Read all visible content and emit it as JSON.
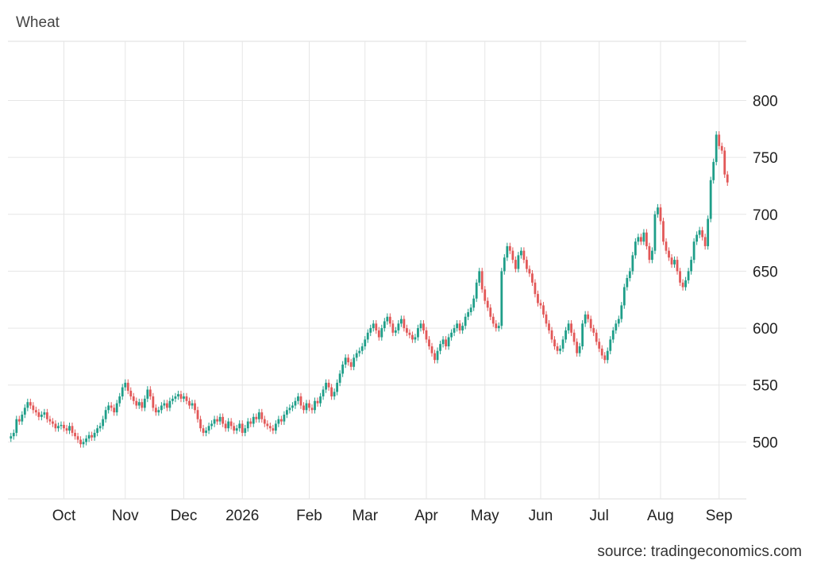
{
  "chart_data": {
    "type": "candlestick",
    "title": "Wheat",
    "source": "source: tradingeconomics.com",
    "up_color": "#1f9e89",
    "down_color": "#e25858",
    "ylim": [
      450,
      852
    ],
    "yticks": [
      500,
      550,
      600,
      650,
      700,
      750,
      800
    ],
    "grid": true,
    "categories": [
      null,
      null,
      null,
      null,
      null,
      null,
      null,
      null,
      null,
      null,
      null,
      null,
      null,
      null,
      null,
      null,
      null,
      null,
      null,
      "Oct",
      null,
      null,
      null,
      null,
      null,
      null,
      null,
      null,
      null,
      null,
      null,
      null,
      null,
      null,
      null,
      null,
      null,
      null,
      null,
      null,
      null,
      "Nov",
      null,
      null,
      null,
      null,
      null,
      null,
      null,
      null,
      null,
      null,
      null,
      null,
      null,
      null,
      null,
      null,
      null,
      null,
      null,
      null,
      "Dec",
      null,
      null,
      null,
      null,
      null,
      null,
      null,
      null,
      null,
      null,
      null,
      null,
      null,
      null,
      null,
      null,
      null,
      null,
      null,
      null,
      "2026",
      null,
      null,
      null,
      null,
      null,
      null,
      null,
      null,
      null,
      null,
      null,
      null,
      null,
      null,
      null,
      null,
      null,
      null,
      null,
      null,
      null,
      null,
      null,
      "Feb",
      null,
      null,
      null,
      null,
      null,
      null,
      null,
      null,
      null,
      null,
      null,
      null,
      null,
      null,
      null,
      null,
      null,
      null,
      null,
      "Mar",
      null,
      null,
      null,
      null,
      null,
      null,
      null,
      null,
      null,
      null,
      null,
      null,
      null,
      null,
      null,
      null,
      null,
      null,
      null,
      null,
      null,
      "Apr",
      null,
      null,
      null,
      null,
      null,
      null,
      null,
      null,
      null,
      null,
      null,
      null,
      null,
      null,
      null,
      null,
      null,
      null,
      null,
      null,
      "May",
      null,
      null,
      null,
      null,
      null,
      null,
      null,
      null,
      null,
      null,
      null,
      null,
      null,
      null,
      null,
      null,
      null,
      null,
      null,
      "Jun",
      null,
      null,
      null,
      null,
      null,
      null,
      null,
      null,
      null,
      null,
      null,
      null,
      null,
      null,
      null,
      null,
      null,
      null,
      null,
      null,
      "Jul",
      null,
      null,
      null,
      null,
      null,
      null,
      null,
      null,
      null,
      null,
      null,
      null,
      null,
      null,
      null,
      null,
      null,
      null,
      null,
      null,
      null,
      "Aug",
      null,
      null,
      null,
      null,
      null,
      null,
      null,
      null,
      null,
      null,
      null,
      null,
      null,
      null,
      null,
      null,
      null,
      null,
      null,
      null,
      "Sep",
      null,
      null,
      null
    ],
    "open": [
      503,
      505,
      508,
      520,
      518,
      524,
      530,
      535,
      532,
      528,
      526,
      522,
      524,
      526,
      520,
      518,
      516,
      512,
      514,
      515,
      512,
      510,
      514,
      508,
      505,
      502,
      498,
      500,
      503,
      506,
      504,
      508,
      512,
      514,
      520,
      528,
      532,
      530,
      526,
      534,
      540,
      548,
      552,
      545,
      540,
      536,
      532,
      535,
      530,
      538,
      546,
      540,
      530,
      526,
      528,
      532,
      534,
      530,
      536,
      538,
      540,
      542,
      538,
      540,
      536,
      532,
      534,
      528,
      520,
      512,
      508,
      510,
      514,
      516,
      520,
      518,
      522,
      516,
      512,
      518,
      514,
      510,
      512,
      516,
      508,
      512,
      518,
      516,
      522,
      520,
      526,
      520,
      516,
      514,
      512,
      510,
      516,
      520,
      518,
      524,
      528,
      530,
      532,
      536,
      540,
      532,
      528,
      534,
      530,
      528,
      536,
      534,
      540,
      546,
      552,
      548,
      540,
      544,
      552,
      560,
      568,
      574,
      570,
      566,
      574,
      578,
      580,
      584,
      590,
      596,
      600,
      604,
      598,
      592,
      600,
      606,
      610,
      604,
      596,
      598,
      604,
      608,
      600,
      596,
      594,
      590,
      592,
      600,
      604,
      598,
      590,
      584,
      578,
      572,
      580,
      586,
      590,
      584,
      592,
      596,
      600,
      604,
      598,
      602,
      610,
      614,
      618,
      626,
      640,
      650,
      634,
      624,
      618,
      610,
      604,
      600,
      602,
      650,
      662,
      672,
      668,
      660,
      652,
      664,
      668,
      660,
      652,
      648,
      640,
      630,
      622,
      620,
      612,
      604,
      598,
      590,
      584,
      580,
      582,
      590,
      598,
      604,
      596,
      588,
      578,
      584,
      604,
      612,
      608,
      600,
      596,
      588,
      582,
      576,
      572,
      580,
      590,
      598,
      604,
      608,
      620,
      636,
      644,
      650,
      664,
      676,
      680,
      676,
      684,
      672,
      660,
      668,
      700,
      706,
      694,
      676,
      668,
      662,
      656,
      660,
      650,
      640,
      636,
      642,
      650,
      660,
      676,
      682,
      686,
      680,
      672,
      696,
      730,
      746,
      770,
      760,
      756,
      735
    ],
    "high": [
      508,
      511,
      523,
      523,
      527,
      533,
      538,
      538,
      535,
      531,
      529,
      527,
      529,
      529,
      523,
      521,
      519,
      517,
      518,
      518,
      515,
      517,
      517,
      511,
      508,
      505,
      503,
      506,
      509,
      509,
      511,
      515,
      517,
      523,
      531,
      535,
      535,
      533,
      537,
      543,
      551,
      555,
      555,
      548,
      543,
      539,
      538,
      538,
      541,
      549,
      549,
      543,
      533,
      531,
      535,
      537,
      537,
      539,
      541,
      543,
      545,
      545,
      543,
      543,
      539,
      537,
      537,
      531,
      523,
      515,
      513,
      517,
      519,
      523,
      523,
      525,
      525,
      519,
      521,
      521,
      517,
      515,
      519,
      519,
      515,
      521,
      521,
      525,
      525,
      529,
      529,
      523,
      519,
      517,
      515,
      519,
      523,
      523,
      527,
      531,
      533,
      535,
      539,
      543,
      543,
      535,
      537,
      537,
      533,
      539,
      539,
      543,
      549,
      555,
      555,
      551,
      547,
      555,
      563,
      571,
      577,
      577,
      573,
      577,
      581,
      583,
      587,
      593,
      599,
      603,
      607,
      607,
      601,
      603,
      609,
      613,
      613,
      607,
      601,
      607,
      611,
      611,
      603,
      599,
      597,
      595,
      603,
      607,
      607,
      601,
      593,
      587,
      581,
      583,
      589,
      593,
      593,
      595,
      599,
      603,
      607,
      607,
      605,
      613,
      617,
      621,
      629,
      643,
      653,
      653,
      637,
      627,
      621,
      613,
      607,
      605,
      653,
      665,
      675,
      675,
      671,
      663,
      667,
      671,
      671,
      663,
      655,
      651,
      643,
      633,
      625,
      623,
      615,
      607,
      601,
      593,
      587,
      585,
      593,
      601,
      607,
      607,
      599,
      591,
      587,
      607,
      615,
      615,
      611,
      603,
      599,
      591,
      585,
      579,
      583,
      593,
      601,
      607,
      611,
      623,
      639,
      647,
      653,
      667,
      679,
      683,
      683,
      687,
      687,
      675,
      671,
      703,
      709,
      709,
      697,
      679,
      671,
      665,
      663,
      663,
      653,
      643,
      645,
      653,
      663,
      679,
      685,
      689,
      689,
      683,
      699,
      733,
      749,
      773,
      773,
      763,
      759,
      738
    ],
    "low": [
      500,
      502,
      505,
      515,
      515,
      521,
      527,
      529,
      525,
      523,
      519,
      519,
      521,
      517,
      515,
      513,
      509,
      509,
      511,
      509,
      507,
      507,
      505,
      502,
      499,
      495,
      495,
      497,
      500,
      501,
      501,
      505,
      509,
      511,
      517,
      525,
      527,
      523,
      523,
      531,
      537,
      545,
      542,
      537,
      533,
      529,
      529,
      527,
      527,
      535,
      537,
      527,
      523,
      523,
      525,
      529,
      527,
      527,
      533,
      535,
      537,
      535,
      535,
      533,
      529,
      529,
      525,
      517,
      509,
      505,
      505,
      507,
      511,
      513,
      515,
      515,
      513,
      509,
      509,
      511,
      507,
      507,
      509,
      505,
      505,
      509,
      513,
      513,
      517,
      517,
      517,
      513,
      511,
      509,
      507,
      507,
      513,
      515,
      515,
      521,
      525,
      527,
      529,
      533,
      529,
      525,
      525,
      527,
      525,
      525,
      531,
      531,
      537,
      543,
      545,
      537,
      537,
      541,
      549,
      557,
      565,
      567,
      563,
      563,
      571,
      575,
      577,
      581,
      587,
      593,
      597,
      595,
      589,
      589,
      597,
      603,
      601,
      593,
      593,
      595,
      601,
      597,
      593,
      591,
      587,
      587,
      589,
      597,
      595,
      587,
      581,
      575,
      569,
      569,
      577,
      583,
      581,
      581,
      589,
      593,
      597,
      595,
      595,
      599,
      607,
      611,
      615,
      623,
      637,
      631,
      621,
      615,
      607,
      601,
      597,
      597,
      599,
      647,
      659,
      665,
      657,
      649,
      649,
      661,
      657,
      649,
      645,
      637,
      627,
      619,
      617,
      609,
      601,
      595,
      587,
      581,
      577,
      577,
      579,
      587,
      595,
      593,
      585,
      575,
      575,
      581,
      601,
      605,
      597,
      593,
      585,
      579,
      573,
      569,
      569,
      577,
      587,
      595,
      601,
      605,
      617,
      633,
      641,
      647,
      661,
      673,
      673,
      673,
      669,
      657,
      657,
      665,
      697,
      691,
      673,
      665,
      659,
      653,
      653,
      647,
      637,
      633,
      633,
      639,
      647,
      657,
      673,
      679,
      677,
      669,
      669,
      693,
      727,
      743,
      757,
      753,
      732,
      725
    ],
    "close": [
      505,
      508,
      520,
      518,
      524,
      530,
      535,
      532,
      528,
      526,
      522,
      524,
      526,
      520,
      518,
      516,
      512,
      514,
      515,
      512,
      510,
      514,
      508,
      505,
      502,
      498,
      500,
      503,
      506,
      504,
      508,
      512,
      514,
      520,
      528,
      532,
      530,
      526,
      534,
      540,
      548,
      552,
      545,
      540,
      536,
      532,
      535,
      530,
      538,
      546,
      540,
      530,
      526,
      528,
      532,
      534,
      530,
      536,
      538,
      540,
      542,
      538,
      540,
      536,
      532,
      534,
      528,
      520,
      512,
      508,
      510,
      514,
      516,
      520,
      518,
      522,
      516,
      512,
      518,
      514,
      510,
      512,
      516,
      508,
      512,
      518,
      516,
      522,
      520,
      526,
      520,
      516,
      514,
      512,
      510,
      516,
      520,
      518,
      524,
      528,
      530,
      532,
      536,
      540,
      532,
      528,
      534,
      530,
      528,
      536,
      534,
      540,
      546,
      552,
      548,
      540,
      544,
      552,
      560,
      568,
      574,
      570,
      566,
      574,
      578,
      580,
      584,
      590,
      596,
      600,
      604,
      598,
      592,
      600,
      606,
      610,
      604,
      596,
      598,
      604,
      608,
      600,
      596,
      594,
      590,
      592,
      600,
      604,
      598,
      590,
      584,
      578,
      572,
      580,
      586,
      590,
      584,
      592,
      596,
      600,
      604,
      598,
      602,
      610,
      614,
      618,
      626,
      640,
      650,
      634,
      624,
      618,
      610,
      604,
      600,
      602,
      650,
      662,
      672,
      668,
      660,
      652,
      664,
      668,
      660,
      652,
      648,
      640,
      630,
      622,
      620,
      612,
      604,
      598,
      590,
      584,
      580,
      582,
      590,
      598,
      604,
      596,
      588,
      578,
      584,
      604,
      612,
      608,
      600,
      596,
      588,
      582,
      576,
      572,
      580,
      590,
      598,
      604,
      608,
      620,
      636,
      644,
      650,
      664,
      676,
      680,
      676,
      684,
      672,
      660,
      668,
      700,
      706,
      694,
      676,
      668,
      662,
      656,
      660,
      650,
      640,
      636,
      642,
      650,
      660,
      676,
      682,
      686,
      680,
      672,
      696,
      730,
      746,
      770,
      760,
      756,
      735,
      728
    ]
  }
}
